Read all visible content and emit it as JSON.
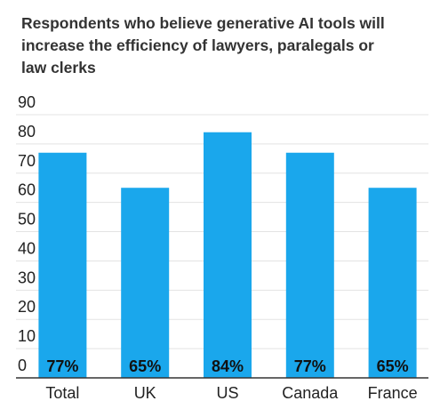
{
  "chart_data": {
    "type": "bar",
    "title_lines": [
      "Respondents who believe generative AI tools will",
      "increase the efficiency of lawyers, paralegals or",
      "law clerks"
    ],
    "categories": [
      "Total",
      "UK",
      "US",
      "Canada",
      "France"
    ],
    "values": [
      77,
      65,
      84,
      77,
      65
    ],
    "data_labels": [
      "77%",
      "65%",
      "84%",
      "77%",
      "65%"
    ],
    "yticks": [
      "0",
      "10",
      "20",
      "30",
      "40",
      "50",
      "60",
      "70",
      "80",
      "90"
    ],
    "ylim": [
      0,
      90
    ],
    "grid": true,
    "bar_color": "#1aa7ec",
    "grid_color": "#e3e3e3",
    "axis_color": "#333333"
  }
}
